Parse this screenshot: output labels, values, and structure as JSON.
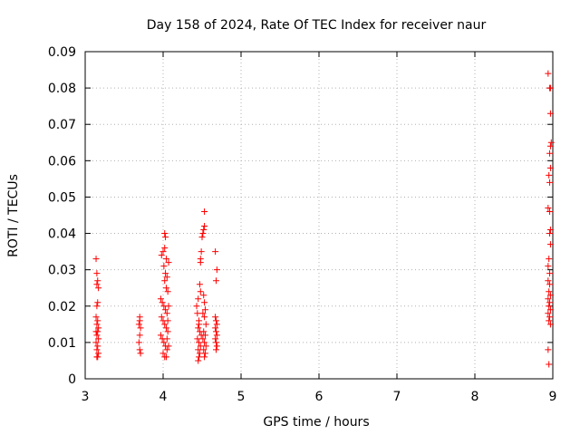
{
  "chart_data": {
    "type": "scatter",
    "title": "Day 158 of 2024, Rate Of TEC Index for receiver naur",
    "xlabel": "GPS time / hours",
    "ylabel": "ROTI / TECUs",
    "xlim": [
      3,
      9
    ],
    "ylim": [
      0,
      0.09
    ],
    "xticks": [
      "3",
      "4",
      "5",
      "6",
      "7",
      "8",
      "9"
    ],
    "yticks": [
      "0",
      "0.01",
      "0.02",
      "0.03",
      "0.04",
      "0.05",
      "0.06",
      "0.07",
      "0.08",
      "0.09"
    ],
    "grid": true,
    "marker": "+",
    "color": "#ff0000",
    "series": [
      {
        "points": [
          [
            3.14,
            0.033
          ],
          [
            3.15,
            0.029
          ],
          [
            3.16,
            0.027
          ],
          [
            3.15,
            0.026
          ],
          [
            3.17,
            0.025
          ],
          [
            3.16,
            0.021
          ],
          [
            3.15,
            0.02
          ],
          [
            3.14,
            0.017
          ],
          [
            3.16,
            0.016
          ],
          [
            3.15,
            0.015
          ],
          [
            3.17,
            0.014
          ],
          [
            3.14,
            0.013
          ],
          [
            3.16,
            0.013
          ],
          [
            3.15,
            0.012
          ],
          [
            3.17,
            0.011
          ],
          [
            3.14,
            0.01
          ],
          [
            3.16,
            0.009
          ],
          [
            3.15,
            0.008
          ],
          [
            3.17,
            0.007
          ],
          [
            3.15,
            0.006
          ],
          [
            3.16,
            0.006
          ],
          [
            3.7,
            0.017
          ],
          [
            3.7,
            0.016
          ],
          [
            3.69,
            0.015
          ],
          [
            3.71,
            0.014
          ],
          [
            3.7,
            0.012
          ],
          [
            3.69,
            0.01
          ],
          [
            3.7,
            0.008
          ],
          [
            3.71,
            0.007
          ],
          [
            3.98,
            0.034
          ],
          [
            4.0,
            0.035
          ],
          [
            4.02,
            0.036
          ],
          [
            4.02,
            0.04
          ],
          [
            4.03,
            0.039
          ],
          [
            4.04,
            0.033
          ],
          [
            4.01,
            0.031
          ],
          [
            4.03,
            0.029
          ],
          [
            4.05,
            0.028
          ],
          [
            4.02,
            0.027
          ],
          [
            4.04,
            0.025
          ],
          [
            4.06,
            0.024
          ],
          [
            3.97,
            0.022
          ],
          [
            3.99,
            0.021
          ],
          [
            4.01,
            0.02
          ],
          [
            4.03,
            0.019
          ],
          [
            4.05,
            0.018
          ],
          [
            3.98,
            0.017
          ],
          [
            4.0,
            0.016
          ],
          [
            4.02,
            0.015
          ],
          [
            4.04,
            0.014
          ],
          [
            4.06,
            0.013
          ],
          [
            3.97,
            0.012
          ],
          [
            3.99,
            0.011
          ],
          [
            4.01,
            0.01
          ],
          [
            4.03,
            0.009
          ],
          [
            4.05,
            0.008
          ],
          [
            4.0,
            0.007
          ],
          [
            4.02,
            0.006
          ],
          [
            4.04,
            0.006
          ],
          [
            4.07,
            0.032
          ],
          [
            4.07,
            0.02
          ],
          [
            4.06,
            0.016
          ],
          [
            4.05,
            0.011
          ],
          [
            4.07,
            0.009
          ],
          [
            4.43,
            0.02
          ],
          [
            4.44,
            0.018
          ],
          [
            4.45,
            0.022
          ],
          [
            4.46,
            0.016
          ],
          [
            4.47,
            0.026
          ],
          [
            4.48,
            0.024
          ],
          [
            4.46,
            0.015
          ],
          [
            4.45,
            0.014
          ],
          [
            4.47,
            0.013
          ],
          [
            4.49,
            0.012
          ],
          [
            4.44,
            0.011
          ],
          [
            4.46,
            0.01
          ],
          [
            4.48,
            0.009
          ],
          [
            4.45,
            0.008
          ],
          [
            4.47,
            0.007
          ],
          [
            4.46,
            0.006
          ],
          [
            4.45,
            0.005
          ],
          [
            4.48,
            0.033
          ],
          [
            4.48,
            0.032
          ],
          [
            4.49,
            0.035
          ],
          [
            4.5,
            0.039
          ],
          [
            4.51,
            0.04
          ],
          [
            4.52,
            0.041
          ],
          [
            4.53,
            0.042
          ],
          [
            4.53,
            0.046
          ],
          [
            4.52,
            0.023
          ],
          [
            4.53,
            0.021
          ],
          [
            4.54,
            0.019
          ],
          [
            4.51,
            0.018
          ],
          [
            4.53,
            0.017
          ],
          [
            4.55,
            0.015
          ],
          [
            4.52,
            0.013
          ],
          [
            4.54,
            0.012
          ],
          [
            4.51,
            0.011
          ],
          [
            4.53,
            0.01
          ],
          [
            4.55,
            0.009
          ],
          [
            4.52,
            0.008
          ],
          [
            4.54,
            0.007
          ],
          [
            4.53,
            0.006
          ],
          [
            4.67,
            0.035
          ],
          [
            4.69,
            0.03
          ],
          [
            4.68,
            0.027
          ],
          [
            4.67,
            0.017
          ],
          [
            4.68,
            0.016
          ],
          [
            4.69,
            0.015
          ],
          [
            4.67,
            0.014
          ],
          [
            4.68,
            0.013
          ],
          [
            4.69,
            0.012
          ],
          [
            4.67,
            0.011
          ],
          [
            4.68,
            0.01
          ],
          [
            4.69,
            0.009
          ],
          [
            4.68,
            0.008
          ],
          [
            8.94,
            0.084
          ],
          [
            8.96,
            0.08
          ],
          [
            8.97,
            0.08
          ],
          [
            8.97,
            0.073
          ],
          [
            8.98,
            0.065
          ],
          [
            8.97,
            0.064
          ],
          [
            8.96,
            0.062
          ],
          [
            8.97,
            0.058
          ],
          [
            8.95,
            0.056
          ],
          [
            8.96,
            0.054
          ],
          [
            8.94,
            0.047
          ],
          [
            8.96,
            0.046
          ],
          [
            8.97,
            0.041
          ],
          [
            8.96,
            0.04
          ],
          [
            8.97,
            0.037
          ],
          [
            8.95,
            0.033
          ],
          [
            8.94,
            0.031
          ],
          [
            8.96,
            0.029
          ],
          [
            8.94,
            0.027
          ],
          [
            8.96,
            0.026
          ],
          [
            8.95,
            0.024
          ],
          [
            8.97,
            0.023
          ],
          [
            8.94,
            0.022
          ],
          [
            8.96,
            0.021
          ],
          [
            8.95,
            0.02
          ],
          [
            8.97,
            0.019
          ],
          [
            8.94,
            0.018
          ],
          [
            8.96,
            0.017
          ],
          [
            8.95,
            0.016
          ],
          [
            8.97,
            0.015
          ],
          [
            8.94,
            0.008
          ],
          [
            8.95,
            0.004
          ]
        ]
      }
    ]
  }
}
